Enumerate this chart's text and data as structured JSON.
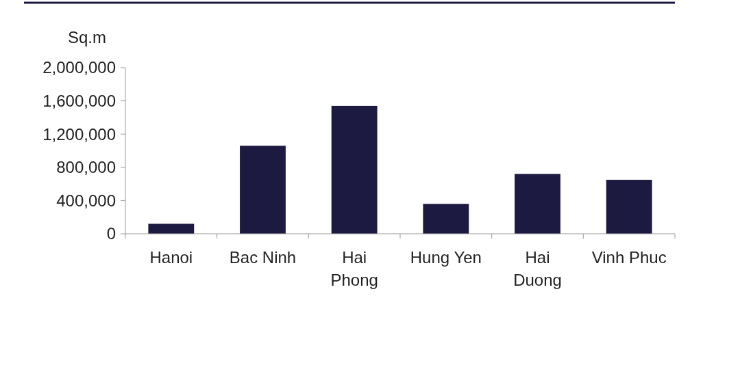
{
  "chart_data": {
    "type": "bar",
    "ylabel": "Sq.m",
    "categories": [
      "Hanoi",
      "Bac Ninh",
      "Hai\nPhong",
      "Hung Yen",
      "Hai\nDuong",
      "Vinh Phuc"
    ],
    "values": [
      120000,
      1060000,
      1540000,
      360000,
      720000,
      650000
    ],
    "color": "#1c1a40",
    "ylim": [
      0,
      2000000
    ],
    "yticks": [
      {
        "value": 0,
        "label": "0"
      },
      {
        "value": 400000,
        "label": "400,000"
      },
      {
        "value": 800000,
        "label": "800,000"
      },
      {
        "value": 1200000,
        "label": "1,200,000"
      },
      {
        "value": 1600000,
        "label": "1,600,000"
      },
      {
        "value": 2000000,
        "label": "2,000,000"
      }
    ],
    "grid": false
  }
}
